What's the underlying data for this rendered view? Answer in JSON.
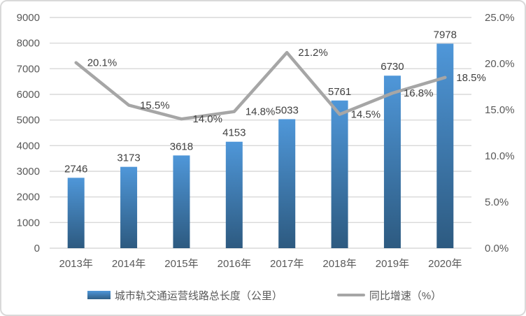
{
  "chart_data": {
    "type": "bar",
    "subtype": "bar-line-combo",
    "title": "",
    "categories": [
      "2013年",
      "2014年",
      "2015年",
      "2016年",
      "2017年",
      "2018年",
      "2019年",
      "2020年"
    ],
    "series": [
      {
        "name": "城市轨交通运营线路总长度（公里）",
        "type": "bar",
        "axis": "left",
        "values": [
          2746,
          3173,
          3618,
          4153,
          5033,
          5761,
          6730,
          7978
        ],
        "data_labels": [
          "2746",
          "3173",
          "3618",
          "4153",
          "5033",
          "5761",
          "6730",
          "7978"
        ]
      },
      {
        "name": "同比增速（%）",
        "type": "line",
        "axis": "right",
        "values": [
          20.1,
          15.5,
          14.0,
          14.8,
          21.2,
          14.5,
          16.8,
          18.5
        ],
        "data_labels": [
          "20.1%",
          "15.5%",
          "14.0%",
          "14.8%",
          "21.2%",
          "14.5%",
          "16.8%",
          "18.5%"
        ]
      }
    ],
    "left_axis": {
      "min": 0,
      "max": 9000,
      "step": 1000,
      "tick_labels": [
        "0",
        "1000",
        "2000",
        "3000",
        "4000",
        "5000",
        "6000",
        "7000",
        "8000",
        "9000"
      ]
    },
    "right_axis": {
      "min": 0,
      "max": 25,
      "step": 5,
      "tick_labels": [
        "0.0%",
        "5.0%",
        "10.0%",
        "15.0%",
        "20.0%",
        "25.0%"
      ]
    },
    "grid": true,
    "legend_position": "bottom",
    "colors": {
      "bar_gradient_top": "#4f97d9",
      "bar_gradient_bottom": "#2d5a80",
      "line": "#a6a6a6",
      "gridline": "#d9d9d9",
      "axis_text": "#595959",
      "data_label_text": "#404040",
      "frame_border": "#d9d9d9",
      "background": "#ffffff"
    }
  },
  "legend": {
    "bar_label": "城市轨交通运营线路总长度（公里）",
    "line_label": "同比增速（%）"
  }
}
